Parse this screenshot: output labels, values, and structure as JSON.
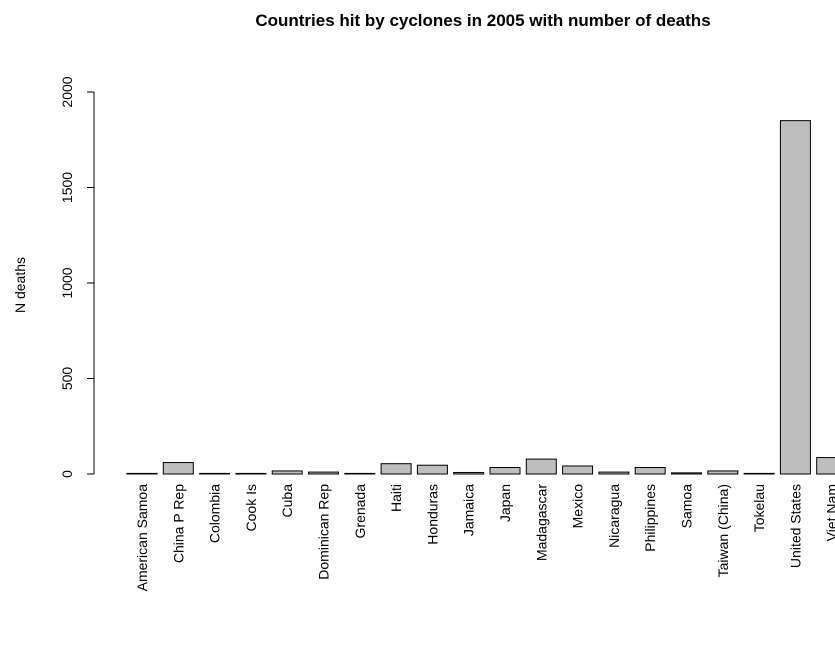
{
  "chart_data": {
    "type": "bar",
    "title": "Countries hit by cyclones in 2005 with number of deaths",
    "xlabel": "",
    "ylabel": "N deaths",
    "ylim": [
      0,
      2000
    ],
    "yticks": [
      0,
      500,
      1000,
      1500,
      2000
    ],
    "categories": [
      "American Samoa",
      "China P Rep",
      "Colombia",
      "Cook Is",
      "Cuba",
      "Dominican Rep",
      "Grenada",
      "Haiti",
      "Honduras",
      "Jamaica",
      "Japan",
      "Madagascar",
      "Mexico",
      "Nicaragua",
      "Philippines",
      "Samoa",
      "Taiwan (China)",
      "Tokelau",
      "United States",
      "Viet Nam"
    ],
    "values": [
      0,
      60,
      1,
      0,
      16,
      10,
      1,
      54,
      46,
      8,
      34,
      78,
      42,
      10,
      34,
      6,
      16,
      0,
      1850,
      86
    ],
    "grid": false,
    "bar_color": "#bebebe",
    "bar_stroke": "#000000"
  }
}
